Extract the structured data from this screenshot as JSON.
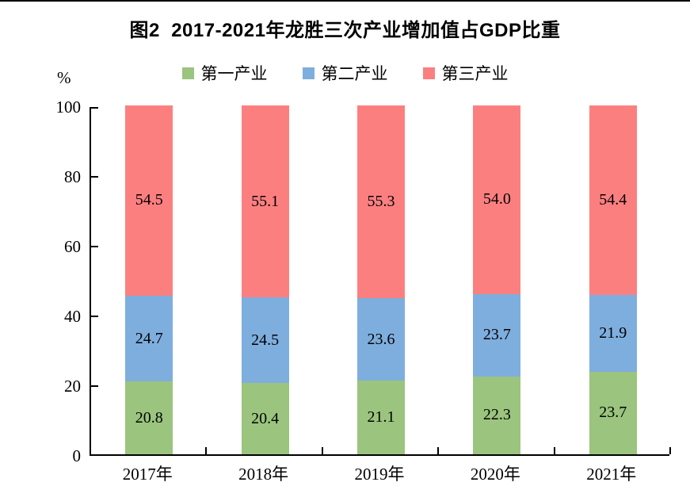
{
  "figure": {
    "title": "图2  2017-2021年龙胜三次产业增加值占GDP比重",
    "y_unit_label": "%"
  },
  "chart_data": {
    "type": "bar",
    "stacked": true,
    "title": "图2  2017-2021年龙胜三次产业增加值占GDP比重",
    "xlabel": "",
    "ylabel": "%",
    "ylim": [
      0,
      100
    ],
    "yticks": [
      100,
      80,
      60,
      40,
      20,
      0
    ],
    "grid": false,
    "legend_position": "top",
    "categories": [
      "2017年",
      "2018年",
      "2019年",
      "2020年",
      "2021年"
    ],
    "series": [
      {
        "name": "第一产业",
        "color": "#9BC47E",
        "values": [
          20.8,
          20.4,
          21.1,
          22.3,
          23.7
        ]
      },
      {
        "name": "第二产业",
        "color": "#7EAEDD",
        "values": [
          24.7,
          24.5,
          23.6,
          23.7,
          21.9
        ]
      },
      {
        "name": "第三产业",
        "color": "#FC7F80",
        "values": [
          54.5,
          55.1,
          55.3,
          54.0,
          54.4
        ]
      }
    ]
  }
}
